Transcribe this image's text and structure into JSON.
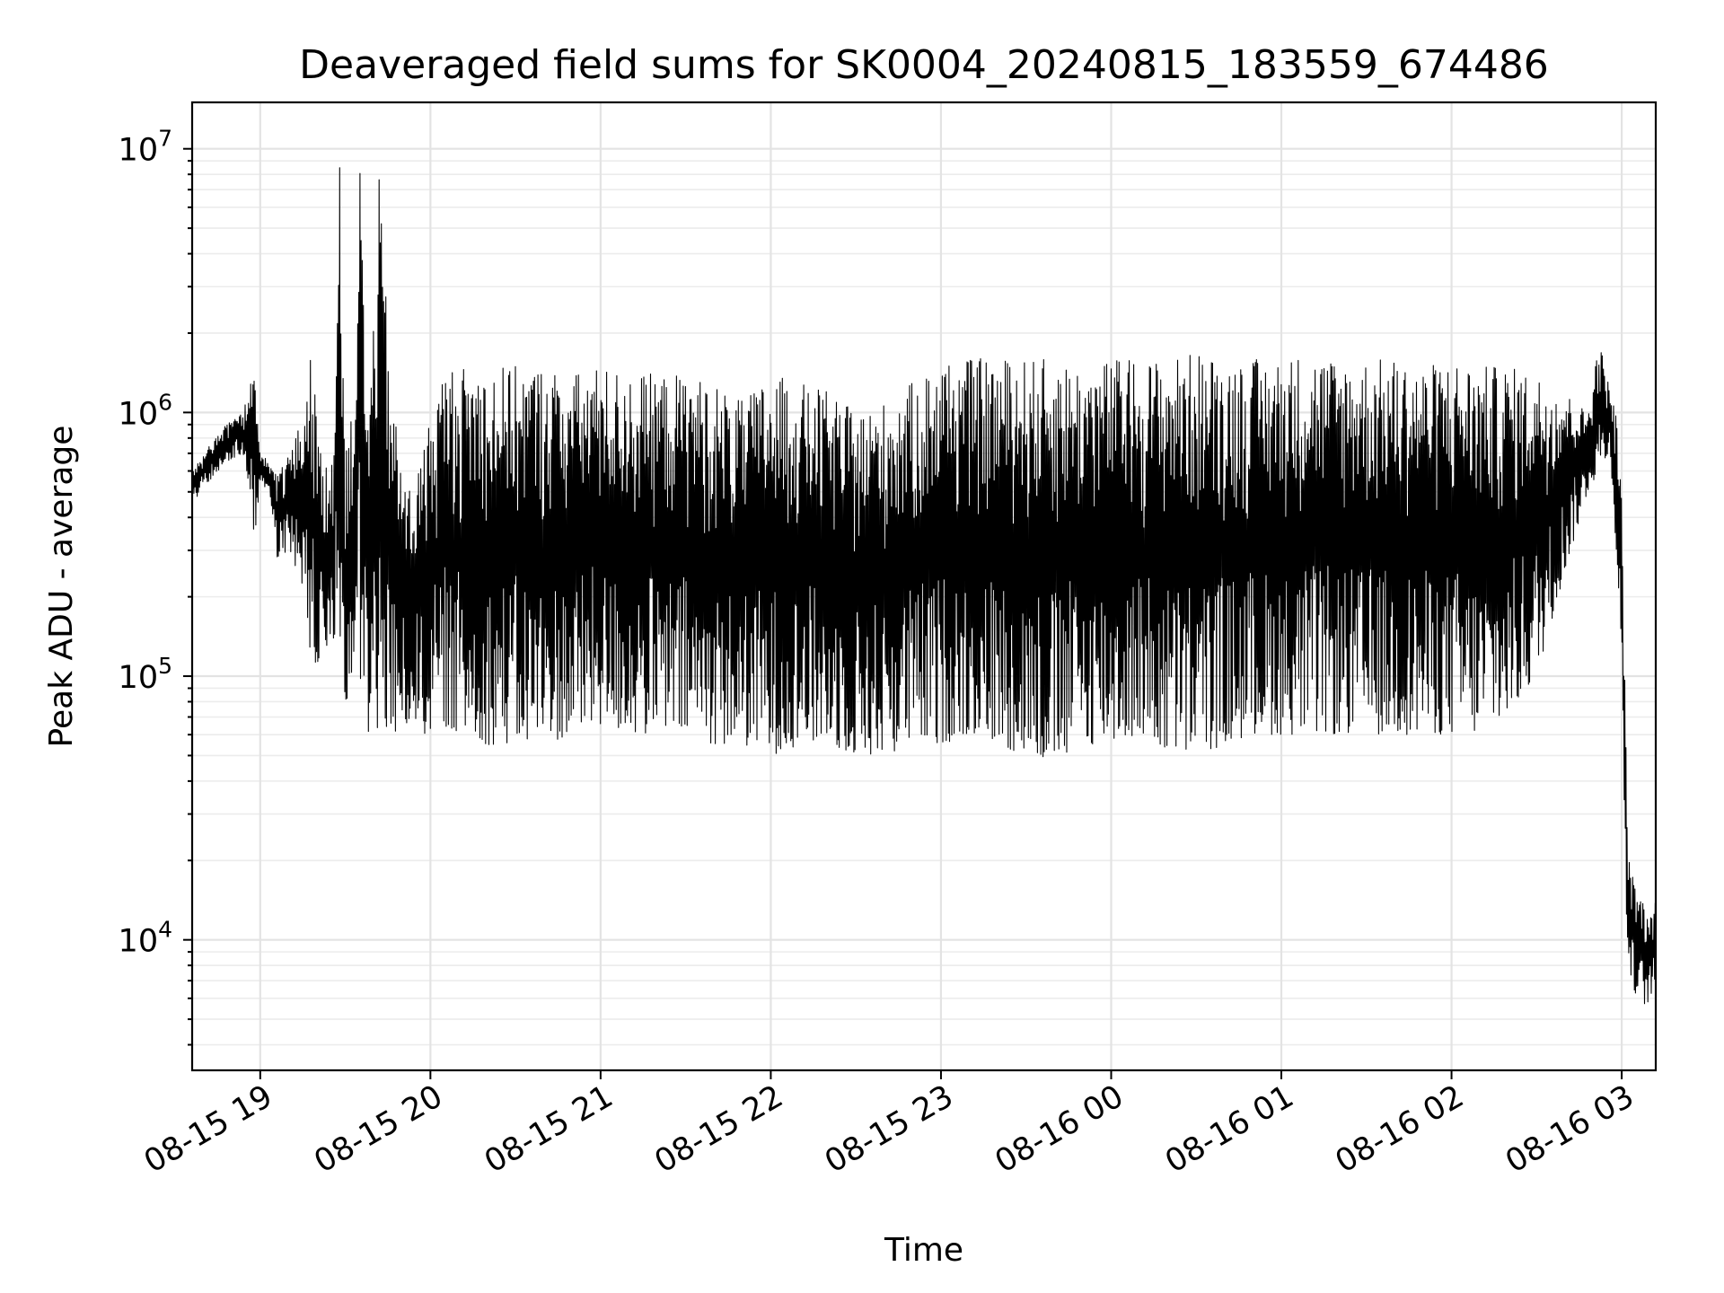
{
  "chart_data": {
    "type": "line",
    "title": "Deaveraged field sums for SK0004_20240815_183559_674486",
    "xlabel": "Time",
    "ylabel": "Peak ADU - average",
    "yscale": "log",
    "ylim": [
      3200,
      15000000
    ],
    "xlim": [
      "2024-08-15 18:36",
      "2024-08-16 03:12"
    ],
    "grid": true,
    "legend": "none",
    "line_color": "#000000",
    "x_ticks": [
      {
        "value": "2024-08-15 19:00",
        "label": "08-15 19"
      },
      {
        "value": "2024-08-15 20:00",
        "label": "08-15 20"
      },
      {
        "value": "2024-08-15 21:00",
        "label": "08-15 21"
      },
      {
        "value": "2024-08-15 22:00",
        "label": "08-15 22"
      },
      {
        "value": "2024-08-15 23:00",
        "label": "08-15 23"
      },
      {
        "value": "2024-08-16 00:00",
        "label": "08-16 00"
      },
      {
        "value": "2024-08-16 01:00",
        "label": "08-16 01"
      },
      {
        "value": "2024-08-16 02:00",
        "label": "08-16 02"
      },
      {
        "value": "2024-08-16 03:00",
        "label": "08-16 03"
      }
    ],
    "y_ticks": [
      {
        "value": 10000,
        "base": "10",
        "exp": "4"
      },
      {
        "value": 100000,
        "base": "10",
        "exp": "5"
      },
      {
        "value": 1000000,
        "base": "10",
        "exp": "6"
      },
      {
        "value": 10000000,
        "base": "10",
        "exp": "7"
      }
    ],
    "series": [
      {
        "x": [
          "2024-08-15 18:36",
          "2024-08-15 18:42",
          "2024-08-15 18:48",
          "2024-08-15 18:54",
          "2024-08-15 18:58",
          "2024-08-15 19:00",
          "2024-08-15 19:03",
          "2024-08-15 19:06",
          "2024-08-15 19:10",
          "2024-08-15 19:14",
          "2024-08-15 19:18",
          "2024-08-15 19:22",
          "2024-08-15 19:26",
          "2024-08-15 19:28",
          "2024-08-15 19:30",
          "2024-08-15 19:33",
          "2024-08-15 19:35",
          "2024-08-15 19:38",
          "2024-08-15 19:42",
          "2024-08-15 19:46",
          "2024-08-15 19:50",
          "2024-08-15 19:54",
          "2024-08-15 19:58",
          "2024-08-15 20:05",
          "2024-08-15 20:10",
          "2024-08-15 20:20",
          "2024-08-15 20:30",
          "2024-08-15 20:40",
          "2024-08-15 20:50",
          "2024-08-15 21:00",
          "2024-08-15 21:10",
          "2024-08-15 21:20",
          "2024-08-15 21:30",
          "2024-08-15 21:40",
          "2024-08-15 21:50",
          "2024-08-15 22:00",
          "2024-08-15 22:10",
          "2024-08-15 22:20",
          "2024-08-15 22:30",
          "2024-08-15 22:40",
          "2024-08-15 22:50",
          "2024-08-15 23:00",
          "2024-08-15 23:10",
          "2024-08-15 23:20",
          "2024-08-15 23:30",
          "2024-08-15 23:40",
          "2024-08-15 23:50",
          "2024-08-16 00:00",
          "2024-08-16 00:10",
          "2024-08-16 00:20",
          "2024-08-16 00:30",
          "2024-08-16 00:40",
          "2024-08-16 00:50",
          "2024-08-16 01:00",
          "2024-08-16 01:10",
          "2024-08-16 01:20",
          "2024-08-16 01:30",
          "2024-08-16 01:40",
          "2024-08-16 01:50",
          "2024-08-16 02:00",
          "2024-08-16 02:10",
          "2024-08-16 02:20",
          "2024-08-16 02:30",
          "2024-08-16 02:40",
          "2024-08-16 02:48",
          "2024-08-16 02:52",
          "2024-08-16 02:56",
          "2024-08-16 02:58",
          "2024-08-16 03:00",
          "2024-08-16 03:02",
          "2024-08-16 03:04",
          "2024-08-16 03:06",
          "2024-08-16 03:08",
          "2024-08-16 03:10",
          "2024-08-16 03:12"
        ],
        "upper": [
          600000,
          750000,
          900000,
          1000000,
          1600000,
          700000,
          650000,
          600000,
          700000,
          900000,
          1700000,
          600000,
          800000,
          8800000,
          800000,
          1000000,
          10000000,
          900000,
          8000000,
          1300000,
          600000,
          500000,
          800000,
          1500000,
          1500000,
          1500000,
          1500000,
          1500000,
          1400000,
          1500000,
          1400000,
          1400000,
          1400000,
          1300000,
          1100000,
          1400000,
          1300000,
          1200000,
          1000000,
          1100000,
          1300000,
          1600000,
          1600000,
          1600000,
          1600000,
          1600000,
          1500000,
          1600000,
          1600000,
          1600000,
          1700000,
          1600000,
          1600000,
          1600000,
          1700000,
          1600000,
          1600000,
          1600000,
          1500000,
          1600000,
          1500000,
          1500000,
          1400000,
          1200000,
          1000000,
          1900000,
          1200000,
          1000000,
          500000,
          25000,
          17000,
          15000,
          14000,
          12000,
          16000
        ],
        "lower": [
          450000,
          550000,
          650000,
          700000,
          320000,
          550000,
          500000,
          280000,
          300000,
          200000,
          110000,
          110000,
          130000,
          150000,
          75000,
          90000,
          90000,
          60000,
          55000,
          60000,
          60000,
          70000,
          60000,
          65000,
          60000,
          55000,
          55000,
          55000,
          60000,
          65000,
          60000,
          60000,
          60000,
          55000,
          55000,
          50000,
          55000,
          55000,
          50000,
          50000,
          55000,
          55000,
          60000,
          55000,
          50000,
          45000,
          55000,
          55000,
          60000,
          50000,
          50000,
          55000,
          60000,
          60000,
          60000,
          60000,
          60000,
          60000,
          60000,
          60000,
          60000,
          70000,
          100000,
          250000,
          500000,
          600000,
          700000,
          300000,
          100000,
          8000,
          6500,
          6000,
          5500,
          6000,
          7000
        ]
      }
    ]
  }
}
